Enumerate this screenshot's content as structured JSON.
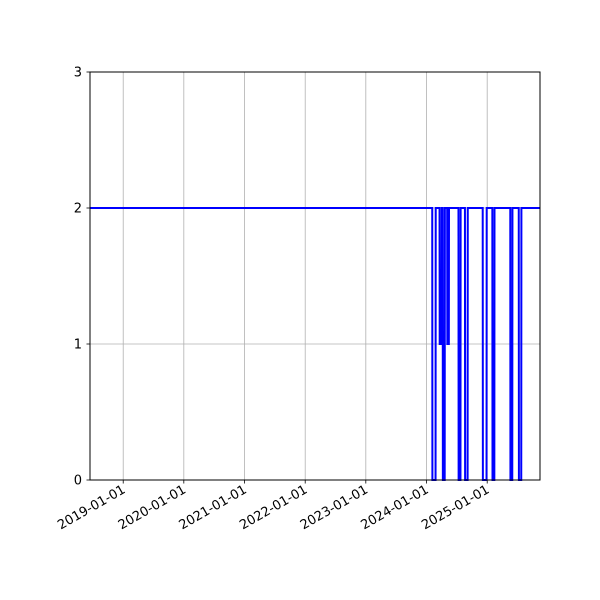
{
  "chart_data": {
    "type": "line",
    "title": "",
    "xlabel": "",
    "ylabel": "",
    "x_axis": {
      "type": "date",
      "range": [
        "2018-06-15",
        "2025-11-15"
      ],
      "ticks": [
        "2019-01-01",
        "2020-01-01",
        "2021-01-01",
        "2022-01-01",
        "2023-01-01",
        "2024-01-01",
        "2025-01-01"
      ]
    },
    "y_axis": {
      "range": [
        0,
        3
      ],
      "ticks": [
        "0",
        "1",
        "2",
        "3"
      ]
    },
    "grid": true,
    "legend": "none",
    "colors": {
      "series": "#0000ff",
      "grid": "#b0b0b0",
      "axes": "#000000"
    },
    "series": [
      {
        "points": [
          [
            "2018-06-15",
            2
          ],
          [
            "2024-02-05",
            2
          ],
          [
            "2024-02-06",
            0
          ],
          [
            "2024-02-25",
            0
          ],
          [
            "2024-02-26",
            2
          ],
          [
            "2024-03-20",
            2
          ],
          [
            "2024-03-21",
            1
          ],
          [
            "2024-04-01",
            1
          ],
          [
            "2024-04-02",
            2
          ],
          [
            "2024-04-08",
            2
          ],
          [
            "2024-04-09",
            0
          ],
          [
            "2024-04-20",
            0
          ],
          [
            "2024-04-21",
            2
          ],
          [
            "2024-05-05",
            2
          ],
          [
            "2024-05-06",
            1
          ],
          [
            "2024-05-15",
            1
          ],
          [
            "2024-05-16",
            2
          ],
          [
            "2024-07-12",
            2
          ],
          [
            "2024-07-13",
            0
          ],
          [
            "2024-07-24",
            0
          ],
          [
            "2024-07-25",
            2
          ],
          [
            "2024-08-20",
            2
          ],
          [
            "2024-08-21",
            0
          ],
          [
            "2024-09-05",
            0
          ],
          [
            "2024-09-06",
            2
          ],
          [
            "2024-12-05",
            2
          ],
          [
            "2024-12-06",
            0
          ],
          [
            "2024-12-28",
            0
          ],
          [
            "2024-12-29",
            2
          ],
          [
            "2025-02-01",
            2
          ],
          [
            "2025-02-02",
            0
          ],
          [
            "2025-02-13",
            0
          ],
          [
            "2025-02-14",
            2
          ],
          [
            "2025-05-20",
            2
          ],
          [
            "2025-05-21",
            0
          ],
          [
            "2025-06-01",
            0
          ],
          [
            "2025-06-02",
            2
          ],
          [
            "2025-07-10",
            2
          ],
          [
            "2025-07-11",
            0
          ],
          [
            "2025-07-25",
            0
          ],
          [
            "2025-07-26",
            2
          ],
          [
            "2025-11-15",
            2
          ]
        ]
      }
    ]
  }
}
